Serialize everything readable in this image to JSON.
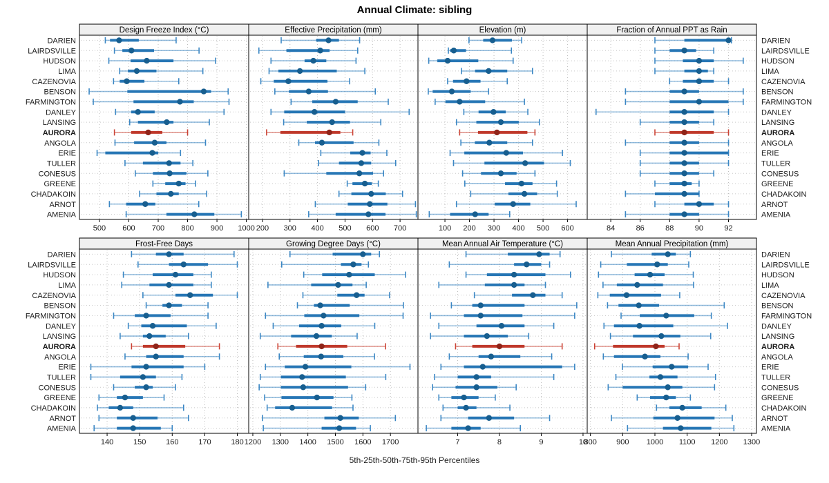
{
  "title": "Annual Climate: sibling",
  "x_axis_label": "5th-25th-50th-75th-95th Percentiles",
  "colors": {
    "normal": "#2676b5",
    "normal_whisker": "#3b87c4",
    "normal_dot": "#175e8f",
    "highlight": "#c0392b",
    "highlight_whisker": "#cb4335",
    "highlight_dot": "#8f2419",
    "header_bg": "#f0f0f0",
    "panel_border": "#000000",
    "grid": "#bdbdbd",
    "row_guide": "#c8c8c8",
    "tick_text": "#1a1a1a",
    "station_text": "#1a1a1a"
  },
  "chart_data": {
    "type": "scatter",
    "variant": "trellis-percentile-dotplot",
    "title": "Annual Climate: sibling",
    "xlabel": "5th-25th-50th-75th-95th Percentiles",
    "percentile_levels": [
      5,
      25,
      50,
      75,
      95
    ],
    "legend_position": "none",
    "grid": "dotted",
    "highlight_station": "AURORA",
    "stations": [
      "DARIEN",
      "LAIRDSVILLE",
      "HUDSON",
      "LIMA",
      "CAZENOVIA",
      "BENSON",
      "FARMINGTON",
      "DANLEY",
      "LANSING",
      "AURORA",
      "ANGOLA",
      "ERIE",
      "TULLER",
      "CONESUS",
      "GREENE",
      "CHADAKOIN",
      "ARNOT",
      "AMENIA"
    ],
    "panels": [
      {
        "title": "Design Freeze Index (°C)",
        "xlim": [
          432,
          1008
        ],
        "ticks": [
          500,
          600,
          700,
          800,
          900,
          1000
        ],
        "values": [
          [
            520,
            536,
            567,
            634,
            761
          ],
          [
            551,
            578,
            609,
            686,
            839
          ],
          [
            532,
            606,
            661,
            752,
            895
          ],
          [
            569,
            597,
            627,
            694,
            852
          ],
          [
            548,
            569,
            593,
            653,
            770
          ],
          [
            465,
            595,
            855,
            880,
            938
          ],
          [
            479,
            616,
            774,
            821,
            941
          ],
          [
            555,
            608,
            631,
            688,
            924
          ],
          [
            603,
            631,
            729,
            752,
            874
          ],
          [
            551,
            608,
            666,
            714,
            800
          ],
          [
            553,
            618,
            688,
            728,
            861
          ],
          [
            492,
            520,
            680,
            700,
            776
          ],
          [
            587,
            648,
            737,
            776,
            818
          ],
          [
            622,
            682,
            739,
            796,
            869
          ],
          [
            682,
            724,
            770,
            793,
            827
          ],
          [
            637,
            694,
            743,
            770,
            865
          ],
          [
            534,
            591,
            656,
            690,
            838
          ],
          [
            591,
            728,
            823,
            891,
            983
          ]
        ]
      },
      {
        "title": "Effective Precipitation (mm)",
        "xlim": [
          150,
          765
        ],
        "ticks": [
          200,
          300,
          400,
          500,
          600,
          700
        ],
        "values": [
          [
            268,
            395,
            440,
            478,
            553
          ],
          [
            187,
            287,
            410,
            444,
            546
          ],
          [
            231,
            353,
            385,
            432,
            540
          ],
          [
            224,
            258,
            336,
            470,
            572
          ],
          [
            194,
            241,
            294,
            436,
            517
          ],
          [
            245,
            296,
            368,
            438,
            610
          ],
          [
            304,
            381,
            466,
            546,
            657
          ],
          [
            231,
            279,
            389,
            500,
            733
          ],
          [
            277,
            361,
            453,
            518,
            630
          ],
          [
            215,
            265,
            443,
            483,
            528
          ],
          [
            332,
            391,
            416,
            531,
            623
          ],
          [
            412,
            519,
            563,
            593,
            652
          ],
          [
            404,
            478,
            559,
            595,
            684
          ],
          [
            279,
            432,
            552,
            602,
            640
          ],
          [
            508,
            527,
            572,
            597,
            621
          ],
          [
            478,
            523,
            595,
            648,
            709
          ],
          [
            392,
            510,
            590,
            654,
            756
          ],
          [
            368,
            466,
            585,
            647,
            759
          ]
        ]
      },
      {
        "title": "Elevation (m)",
        "xlim": [
          -10,
          680
        ],
        "ticks": [
          100,
          200,
          300,
          400,
          500,
          600
        ],
        "values": [
          [
            198,
            256,
            294,
            373,
            413
          ],
          [
            114,
            121,
            136,
            186,
            371
          ],
          [
            34,
            69,
            111,
            236,
            378
          ],
          [
            167,
            223,
            278,
            354,
            457
          ],
          [
            111,
            133,
            188,
            245,
            354
          ],
          [
            32,
            50,
            128,
            205,
            278
          ],
          [
            60,
            102,
            160,
            264,
            424
          ],
          [
            177,
            237,
            298,
            348,
            438
          ],
          [
            147,
            228,
            328,
            401,
            485
          ],
          [
            160,
            235,
            312,
            436,
            467
          ],
          [
            165,
            222,
            281,
            354,
            457
          ],
          [
            121,
            179,
            350,
            418,
            579
          ],
          [
            135,
            261,
            427,
            504,
            611
          ],
          [
            172,
            247,
            328,
            392,
            467
          ],
          [
            181,
            345,
            412,
            457,
            555
          ],
          [
            205,
            359,
            424,
            476,
            558
          ],
          [
            147,
            303,
            378,
            448,
            635
          ],
          [
            36,
            121,
            223,
            278,
            364
          ]
        ]
      },
      {
        "title": "Fraction of Annual PPT as Rain",
        "xlim": [
          82.4,
          93.9
        ],
        "ticks": [
          84,
          86,
          88,
          90,
          92
        ],
        "values": [
          [
            87,
            89,
            92,
            92,
            92.2
          ],
          [
            87,
            88,
            89,
            89.8,
            91
          ],
          [
            87,
            88.9,
            90,
            91,
            93
          ],
          [
            87,
            89,
            90,
            90.6,
            91
          ],
          [
            88,
            88.9,
            90,
            91,
            92
          ],
          [
            85,
            88,
            89,
            90,
            93
          ],
          [
            85,
            88,
            90,
            92,
            93
          ],
          [
            83,
            88,
            89,
            91,
            92
          ],
          [
            86,
            88,
            89,
            90,
            91
          ],
          [
            87,
            88,
            89,
            91,
            92
          ],
          [
            85,
            88,
            89,
            90,
            92
          ],
          [
            86,
            88,
            89,
            92,
            92
          ],
          [
            86,
            88,
            89,
            90,
            92
          ],
          [
            86,
            88,
            89,
            90,
            91
          ],
          [
            87,
            88,
            89,
            89.5,
            90
          ],
          [
            85,
            87,
            89,
            90,
            90
          ],
          [
            87,
            89,
            90,
            91,
            92
          ],
          [
            85,
            88,
            89,
            90,
            92
          ]
        ]
      },
      {
        "title": "Frost-Free Days",
        "xlim": [
          131.5,
          183.5
        ],
        "ticks": [
          140,
          150,
          160,
          170,
          180
        ],
        "values": [
          [
            147.5,
            155,
            159,
            163.5,
            179
          ],
          [
            149.5,
            159,
            163.5,
            171,
            180
          ],
          [
            145,
            154,
            161,
            166.5,
            172
          ],
          [
            144.5,
            153,
            159,
            166.5,
            172
          ],
          [
            151,
            161,
            165.5,
            172.5,
            180
          ],
          [
            152,
            157,
            159,
            163,
            171
          ],
          [
            142,
            148.5,
            152,
            159.5,
            171
          ],
          [
            146.5,
            150.5,
            154,
            164.5,
            173.5
          ],
          [
            144,
            151,
            153,
            158,
            165
          ],
          [
            147.5,
            151,
            155,
            164,
            174.5
          ],
          [
            145.5,
            152,
            155,
            163.5,
            174.5
          ],
          [
            135,
            147.5,
            152,
            163.5,
            170
          ],
          [
            135,
            144,
            151,
            155,
            163
          ],
          [
            142,
            148.5,
            152,
            154,
            161
          ],
          [
            137.5,
            143,
            145.5,
            151,
            157.5
          ],
          [
            137,
            140.5,
            144,
            148,
            163.5
          ],
          [
            137.5,
            143,
            148,
            155.5,
            165
          ],
          [
            136,
            143,
            148,
            156.5,
            160
          ]
        ]
      },
      {
        "title": "Growing Degree Days (°C)",
        "xlim": [
          1185,
          1800
        ],
        "ticks": [
          1200,
          1300,
          1400,
          1500,
          1600,
          1700
        ],
        "values": [
          [
            1335,
            1490,
            1600,
            1630,
            1660
          ],
          [
            1305,
            1520,
            1565,
            1595,
            1620
          ],
          [
            1385,
            1452,
            1550,
            1643,
            1755
          ],
          [
            1255,
            1412,
            1510,
            1562,
            1612
          ],
          [
            1382,
            1507,
            1577,
            1606,
            1697
          ],
          [
            1362,
            1422,
            1445,
            1552,
            1747
          ],
          [
            1246,
            1387,
            1457,
            1587,
            1746
          ],
          [
            1274,
            1368,
            1450,
            1521,
            1643
          ],
          [
            1227,
            1339,
            1431,
            1487,
            1579
          ],
          [
            1291,
            1357,
            1450,
            1543,
            1682
          ],
          [
            1296,
            1385,
            1448,
            1529,
            1642
          ],
          [
            1246,
            1316,
            1391,
            1558,
            1771
          ],
          [
            1227,
            1302,
            1379,
            1538,
            1683
          ],
          [
            1223,
            1302,
            1383,
            1546,
            1610
          ],
          [
            1243,
            1304,
            1433,
            1493,
            1560
          ],
          [
            1252,
            1281,
            1343,
            1488,
            1564
          ],
          [
            1235,
            1460,
            1518,
            1585,
            1718
          ],
          [
            1238,
            1450,
            1514,
            1575,
            1627
          ]
        ]
      },
      {
        "title": "Mean Annual Air Temperature (°C)",
        "xlim": [
          6.05,
          10.1
        ],
        "ticks": [
          7,
          8,
          9,
          10
        ],
        "values": [
          [
            7.2,
            8.2,
            8.95,
            9.2,
            9.45
          ],
          [
            6.8,
            8.35,
            8.65,
            9.0,
            9.2
          ],
          [
            7.2,
            7.7,
            8.35,
            9.1,
            9.7
          ],
          [
            6.55,
            7.65,
            8.35,
            8.6,
            9.1
          ],
          [
            7.4,
            8.3,
            8.8,
            9.1,
            9.5
          ],
          [
            6.85,
            7.35,
            7.55,
            8.6,
            9.85
          ],
          [
            6.35,
            7.15,
            7.55,
            8.55,
            9.8
          ],
          [
            6.55,
            7.45,
            8.05,
            8.6,
            9.3
          ],
          [
            6.35,
            7.15,
            7.7,
            8.2,
            8.7
          ],
          [
            6.95,
            7.35,
            8.0,
            8.6,
            9.5
          ],
          [
            6.8,
            7.5,
            7.8,
            8.5,
            9.25
          ],
          [
            6.6,
            7.15,
            7.6,
            9.5,
            9.8
          ],
          [
            6.45,
            7.0,
            7.45,
            7.8,
            9.3
          ],
          [
            6.4,
            6.95,
            7.45,
            7.95,
            8.4
          ],
          [
            6.55,
            6.85,
            7.15,
            7.5,
            7.9
          ],
          [
            6.65,
            7.0,
            7.2,
            7.45,
            8.25
          ],
          [
            6.6,
            7.25,
            7.75,
            8.35,
            9.2
          ],
          [
            6.25,
            6.85,
            7.25,
            7.55,
            8.5
          ]
        ]
      },
      {
        "title": "Mean Annual Precipitation (mm)",
        "xlim": [
          790,
          1315
        ],
        "ticks": [
          800,
          900,
          1000,
          1100,
          1200,
          1300
        ],
        "values": [
          [
            865,
            990,
            1040,
            1065,
            1110
          ],
          [
            832,
            913,
            1007,
            1040,
            1105
          ],
          [
            825,
            937,
            985,
            1030,
            1119
          ],
          [
            839,
            882,
            945,
            1025,
            1120
          ],
          [
            823,
            860,
            912,
            1019,
            1077
          ],
          [
            853,
            887,
            950,
            1013,
            1215
          ],
          [
            895,
            953,
            1035,
            1122,
            1175
          ],
          [
            842,
            873,
            952,
            1057,
            1225
          ],
          [
            862,
            932,
            1020,
            1079,
            1173
          ],
          [
            813,
            870,
            1003,
            1030,
            1075
          ],
          [
            840,
            873,
            969,
            1017,
            1103
          ],
          [
            899,
            993,
            1052,
            1103,
            1165
          ],
          [
            879,
            983,
            1017,
            1070,
            1188
          ],
          [
            855,
            900,
            1040,
            1085,
            1185
          ],
          [
            945,
            985,
            1035,
            1065,
            1110
          ],
          [
            1005,
            1045,
            1085,
            1145,
            1220
          ],
          [
            865,
            995,
            1070,
            1185,
            1240
          ],
          [
            915,
            1025,
            1080,
            1175,
            1245
          ]
        ]
      }
    ]
  }
}
